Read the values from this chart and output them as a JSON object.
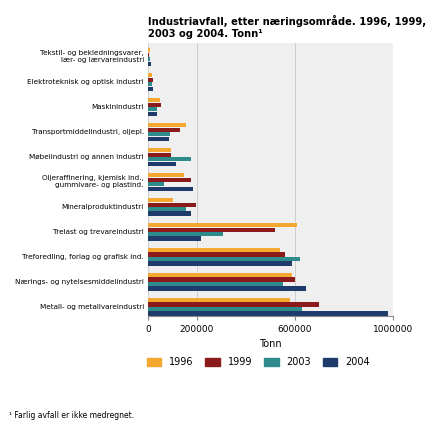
{
  "title": "Industriavfall, etter næringsområde. 1996, 1999, 2003 og 2004. Tonn¹",
  "footnote": "¹ Farlig avfall er ikke medregnet.",
  "xlabel": "Tonn",
  "categories": [
    "Tekstil- og bekledningsvarer,\nlær- og lærvareindustri",
    "Elektroteknisk og optisk industri",
    "Maskinindustri",
    "Transportmiddelindustri, oljepl.",
    "Møbelindustri og annen industri",
    "Oljeraffinering, kjemisk ind.,\ngummivare- og plastind.",
    "Mineralproduktindustri",
    "Trelast og trevareindustri",
    "Treforedling, forlag og grafisk ind.",
    "Nærings- og nytelsesmiddelindustri",
    "Metall- og metallvareindustri"
  ],
  "years": [
    "1996",
    "1999",
    "2003",
    "2004"
  ],
  "colors": [
    "#F5A830",
    "#8B1A1A",
    "#2E8B8B",
    "#1F3B6B"
  ],
  "values": {
    "1996": [
      10000,
      18000,
      48000,
      155000,
      95000,
      145000,
      100000,
      610000,
      540000,
      590000,
      580000
    ],
    "1999": [
      5000,
      22000,
      52000,
      130000,
      95000,
      175000,
      195000,
      520000,
      560000,
      600000,
      700000
    ],
    "2003": [
      8000,
      18000,
      38000,
      88000,
      175000,
      65000,
      155000,
      305000,
      620000,
      550000,
      630000
    ],
    "2004": [
      12000,
      20000,
      35000,
      85000,
      115000,
      185000,
      175000,
      215000,
      590000,
      645000,
      980000
    ]
  },
  "xlim": [
    0,
    1000000
  ],
  "xticks": [
    0,
    200000,
    600000,
    1000000
  ],
  "xticklabels": [
    "0",
    "200000",
    "600000",
    "1000000"
  ],
  "background_color": "#ffffff",
  "plot_bg": "#efefef",
  "grid_color": "#c8c8c8"
}
